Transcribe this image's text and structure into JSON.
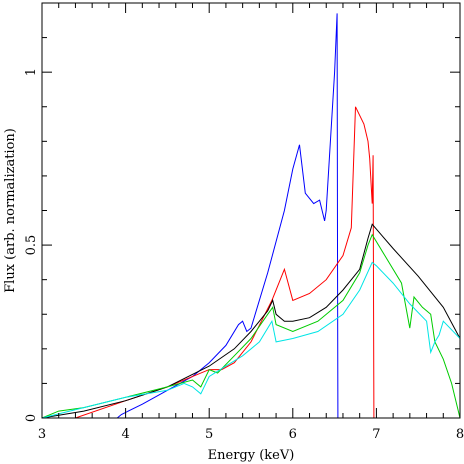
{
  "chart_data": {
    "type": "line",
    "title": "",
    "xlabel": "Energy (keV)",
    "ylabel": "Flux (arb. normalization)",
    "xlim": [
      3,
      8
    ],
    "ylim": [
      0,
      1.2
    ],
    "xticks": [
      3,
      4,
      5,
      6,
      7,
      8
    ],
    "xtick_labels": [
      "3",
      "4",
      "5",
      "6",
      "7",
      "8"
    ],
    "yticks": [
      0,
      0.5,
      1
    ],
    "ytick_labels": [
      "0",
      "0.5",
      "1"
    ],
    "grid": false,
    "legend": "none",
    "series": [
      {
        "color": "#0000ff",
        "x": [
          3.0,
          3.9,
          3.95,
          4.2,
          4.5,
          4.8,
          5.0,
          5.2,
          5.35,
          5.4,
          5.45,
          5.5,
          5.7,
          5.9,
          6.0,
          6.08,
          6.15,
          6.25,
          6.32,
          6.38,
          6.4,
          6.45,
          6.5,
          6.53,
          6.535,
          6.54,
          8.0
        ],
        "y": [
          0.0,
          0.0,
          0.01,
          0.04,
          0.08,
          0.12,
          0.16,
          0.21,
          0.27,
          0.28,
          0.25,
          0.26,
          0.42,
          0.6,
          0.72,
          0.79,
          0.65,
          0.62,
          0.63,
          0.57,
          0.6,
          0.8,
          1.0,
          1.17,
          0.5,
          0.0,
          0.0
        ]
      },
      {
        "color": "#ff0000",
        "x": [
          3.0,
          3.4,
          4.0,
          4.5,
          5.0,
          5.15,
          5.3,
          5.5,
          5.75,
          5.9,
          6.0,
          6.2,
          6.4,
          6.6,
          6.7,
          6.75,
          6.85,
          6.9,
          6.92,
          6.95,
          6.96,
          6.97,
          8.0
        ],
        "y": [
          0.0,
          0.0,
          0.05,
          0.09,
          0.14,
          0.14,
          0.16,
          0.22,
          0.34,
          0.43,
          0.34,
          0.36,
          0.4,
          0.47,
          0.55,
          0.9,
          0.85,
          0.8,
          0.75,
          0.62,
          0.76,
          0.0,
          0.0
        ]
      },
      {
        "color": "#000000",
        "x": [
          3.0,
          3.5,
          4.0,
          4.5,
          5.0,
          5.3,
          5.5,
          5.6,
          5.7,
          5.76,
          5.8,
          5.9,
          6.0,
          6.2,
          6.4,
          6.6,
          6.8,
          6.9,
          6.95,
          7.2,
          7.5,
          7.8,
          8.0
        ],
        "y": [
          0.0,
          0.02,
          0.05,
          0.09,
          0.15,
          0.2,
          0.25,
          0.28,
          0.31,
          0.34,
          0.3,
          0.28,
          0.28,
          0.29,
          0.32,
          0.37,
          0.43,
          0.52,
          0.56,
          0.49,
          0.41,
          0.32,
          0.23
        ]
      },
      {
        "color": "#00cc00",
        "x": [
          3.0,
          3.2,
          3.5,
          4.0,
          4.5,
          4.8,
          4.9,
          5.0,
          5.1,
          5.3,
          5.5,
          5.7,
          5.76,
          5.8,
          6.0,
          6.3,
          6.6,
          6.8,
          6.9,
          6.95,
          7.1,
          7.3,
          7.4,
          7.45,
          7.55,
          7.65,
          7.7,
          7.8,
          7.9,
          8.0
        ],
        "y": [
          0.0,
          0.02,
          0.03,
          0.06,
          0.09,
          0.11,
          0.09,
          0.14,
          0.13,
          0.18,
          0.23,
          0.3,
          0.32,
          0.27,
          0.25,
          0.28,
          0.34,
          0.42,
          0.5,
          0.53,
          0.47,
          0.39,
          0.26,
          0.35,
          0.32,
          0.3,
          0.22,
          0.17,
          0.1,
          0.0
        ]
      },
      {
        "color": "#00e5e5",
        "x": [
          3.0,
          3.5,
          4.0,
          4.5,
          4.7,
          4.8,
          4.9,
          5.0,
          5.2,
          5.4,
          5.6,
          5.75,
          5.8,
          6.0,
          6.3,
          6.6,
          6.8,
          6.95,
          7.0,
          7.2,
          7.4,
          7.6,
          7.65,
          7.7,
          7.75,
          7.8,
          8.0
        ],
        "y": [
          0.0,
          0.03,
          0.06,
          0.08,
          0.1,
          0.09,
          0.07,
          0.12,
          0.15,
          0.18,
          0.22,
          0.28,
          0.22,
          0.23,
          0.25,
          0.3,
          0.37,
          0.45,
          0.44,
          0.39,
          0.33,
          0.28,
          0.19,
          0.22,
          0.24,
          0.28,
          0.23
        ]
      }
    ]
  }
}
